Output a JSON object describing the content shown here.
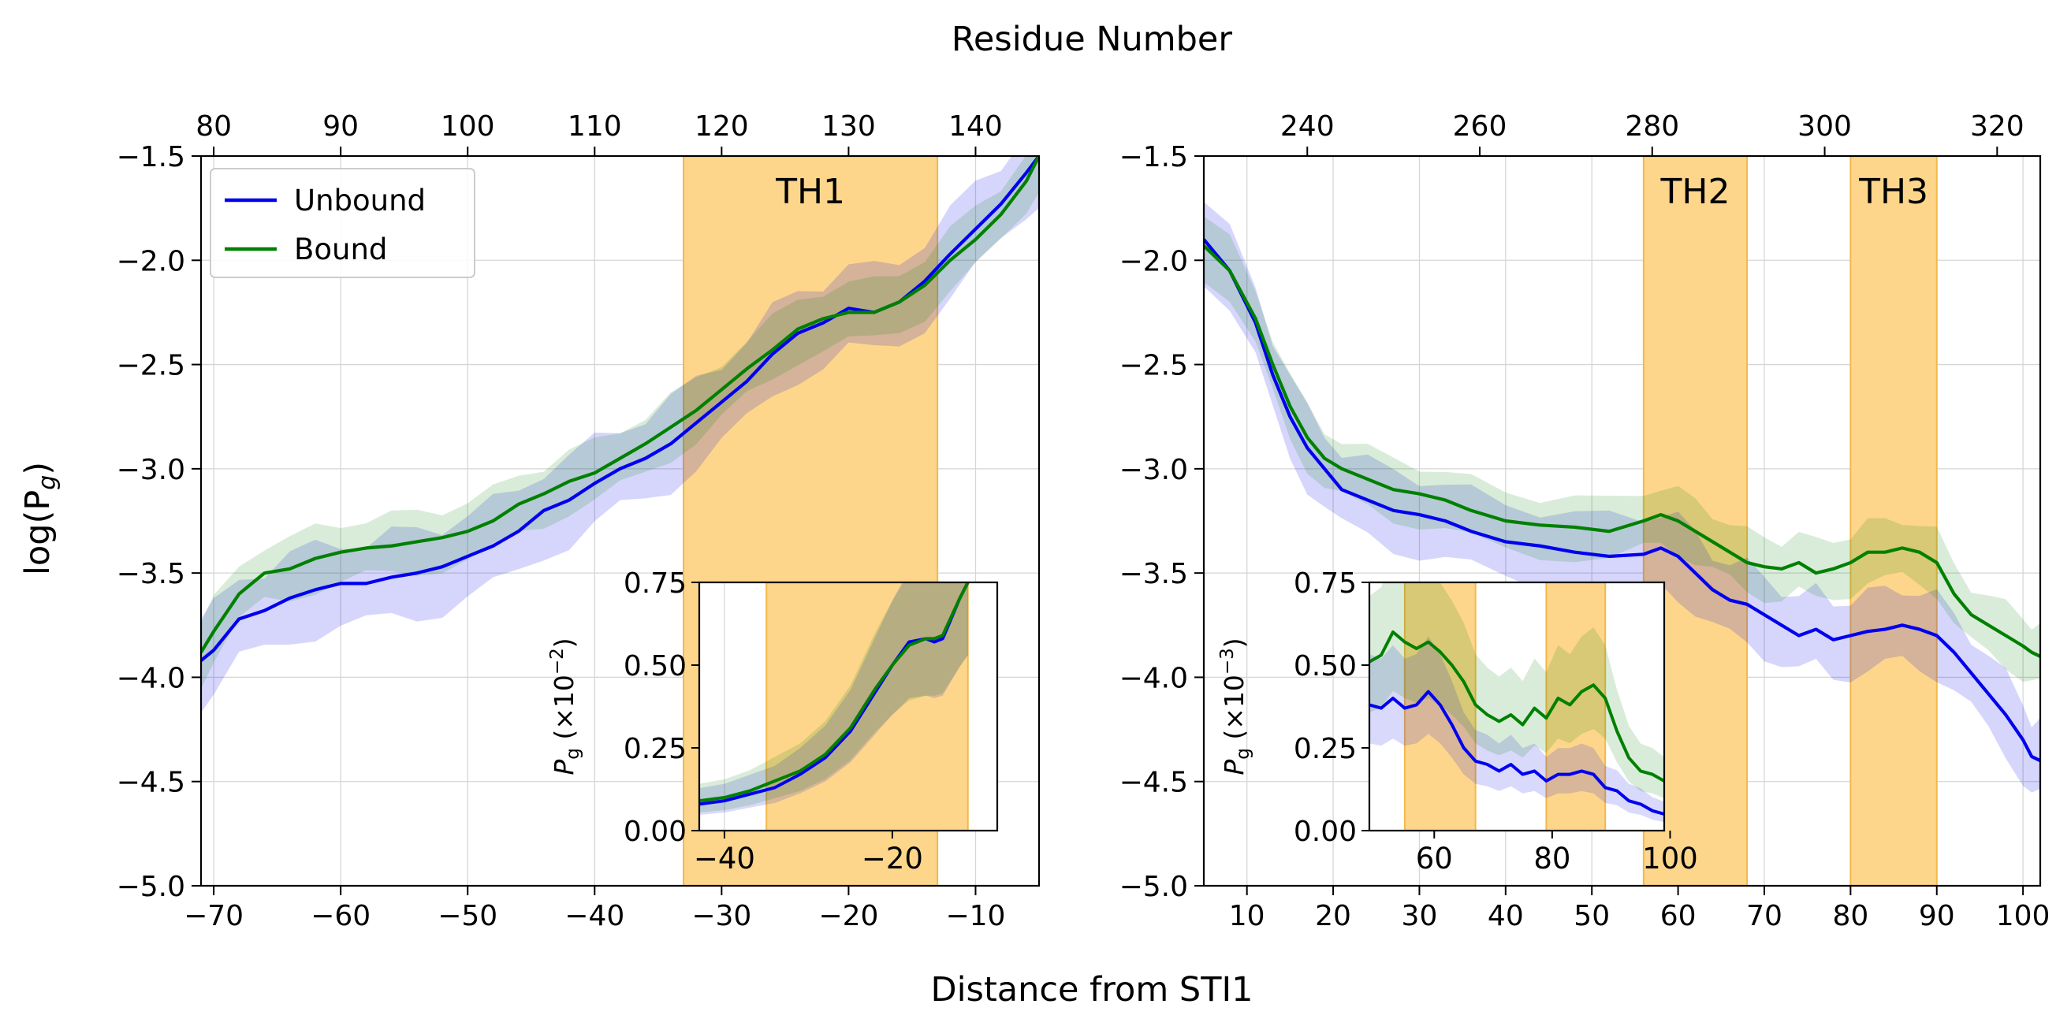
{
  "figure": {
    "top_label": "Residue Number",
    "bottom_label": "Distance from STI1",
    "ylabel_main": "log(P",
    "ylabel_sub": "g",
    "ylabel_close": ")"
  },
  "chart_data": [
    {
      "type": "line",
      "id": "left-main",
      "xlim": [
        -71,
        -5
      ],
      "ylim": [
        -5.0,
        -1.5
      ],
      "x_ticks": [
        -70,
        -60,
        -50,
        -40,
        -30,
        -20,
        -10
      ],
      "y_ticks": [
        -5.0,
        -4.5,
        -4.0,
        -3.5,
        -3.0,
        -2.5,
        -2.0,
        -1.5
      ],
      "y_tick_labels": [
        "−5.0",
        "−4.5",
        "−4.0",
        "−3.5",
        "−3.0",
        "−2.5",
        "−2.0",
        "−1.5"
      ],
      "x_tick_labels": [
        "−70",
        "−60",
        "−50",
        "−40",
        "−30",
        "−20",
        "−10"
      ],
      "top_axis": {
        "ticks": [
          80,
          90,
          100,
          110,
          120,
          130,
          140
        ],
        "offset": 150
      },
      "grid": true,
      "legend": {
        "placement": "top-left",
        "entries": [
          "Unbound",
          "Bound"
        ]
      },
      "regions": [
        {
          "label": "TH1",
          "x0": -33,
          "x1": -13
        }
      ],
      "series": [
        {
          "name": "Unbound",
          "color": "#0000ee",
          "band": 0.2,
          "x": [
            -71,
            -70,
            -68,
            -66,
            -64,
            -62,
            -60,
            -58,
            -56,
            -54,
            -52,
            -50,
            -48,
            -46,
            -44,
            -42,
            -40,
            -38,
            -36,
            -34,
            -32,
            -30,
            -28,
            -26,
            -24,
            -22,
            -20,
            -18,
            -16,
            -14,
            -12,
            -10,
            -8,
            -6,
            -5
          ],
          "y": [
            -3.92,
            -3.87,
            -3.72,
            -3.68,
            -3.62,
            -3.58,
            -3.55,
            -3.55,
            -3.52,
            -3.5,
            -3.47,
            -3.42,
            -3.37,
            -3.3,
            -3.2,
            -3.15,
            -3.07,
            -3.0,
            -2.95,
            -2.88,
            -2.78,
            -2.68,
            -2.58,
            -2.45,
            -2.35,
            -2.3,
            -2.23,
            -2.25,
            -2.2,
            -2.1,
            -1.97,
            -1.85,
            -1.73,
            -1.58,
            -1.5
          ]
        },
        {
          "name": "Bound",
          "color": "#008000",
          "band": 0.14,
          "x": [
            -71,
            -70,
            -68,
            -66,
            -64,
            -62,
            -60,
            -58,
            -56,
            -54,
            -52,
            -50,
            -48,
            -46,
            -44,
            -42,
            -40,
            -38,
            -36,
            -34,
            -32,
            -30,
            -28,
            -26,
            -24,
            -22,
            -20,
            -18,
            -16,
            -14,
            -12,
            -10,
            -8,
            -6,
            -5
          ],
          "y": [
            -3.88,
            -3.78,
            -3.6,
            -3.5,
            -3.48,
            -3.43,
            -3.4,
            -3.38,
            -3.37,
            -3.35,
            -3.33,
            -3.3,
            -3.25,
            -3.17,
            -3.12,
            -3.06,
            -3.02,
            -2.95,
            -2.88,
            -2.8,
            -2.72,
            -2.62,
            -2.52,
            -2.43,
            -2.33,
            -2.28,
            -2.25,
            -2.25,
            -2.2,
            -2.12,
            -2.0,
            -1.9,
            -1.78,
            -1.62,
            -1.5
          ]
        }
      ],
      "inset": {
        "xlim": [
          -43,
          -7.5
        ],
        "ylim": [
          0,
          0.75
        ],
        "x_ticks": [
          -40,
          -20
        ],
        "x_tick_labels": [
          "−40",
          "−20"
        ],
        "y_ticks": [
          0,
          0.25,
          0.5,
          0.75
        ],
        "y_tick_labels": [
          "0.00",
          "0.25",
          "0.50",
          "0.75"
        ],
        "ylabel": "P",
        "ylabel_sub": "g",
        "ylabel_rest": " (×10",
        "ylabel_exp": "−2",
        "ylabel_end": ")",
        "regions": [
          {
            "x0": -35,
            "x1": -11
          }
        ],
        "series": [
          {
            "name": "Unbound",
            "color": "#0000ee",
            "x": [
              -43,
              -40,
              -37,
              -34,
              -31,
              -28,
              -25,
              -22,
              -20,
              -18,
              -16,
              -15,
              -14,
              -12,
              -11
            ],
            "y": [
              0.08,
              0.09,
              0.11,
              0.13,
              0.17,
              0.22,
              0.3,
              0.42,
              0.5,
              0.57,
              0.58,
              0.57,
              0.58,
              0.7,
              0.75
            ]
          },
          {
            "name": "Bound",
            "color": "#008000",
            "x": [
              -43,
              -40,
              -37,
              -34,
              -31,
              -28,
              -25,
              -22,
              -20,
              -18,
              -16,
              -15,
              -14,
              -12,
              -11
            ],
            "y": [
              0.09,
              0.1,
              0.12,
              0.15,
              0.18,
              0.23,
              0.31,
              0.43,
              0.5,
              0.56,
              0.58,
              0.58,
              0.59,
              0.7,
              0.75
            ]
          }
        ]
      }
    },
    {
      "type": "line",
      "id": "right-main",
      "xlim": [
        5,
        102
      ],
      "ylim": [
        -5.0,
        -1.5
      ],
      "x_ticks": [
        10,
        20,
        30,
        40,
        50,
        60,
        70,
        80,
        90,
        100
      ],
      "x_tick_labels": [
        "10",
        "20",
        "30",
        "40",
        "50",
        "60",
        "70",
        "80",
        "90",
        "100"
      ],
      "y_ticks": [
        -5.0,
        -4.5,
        -4.0,
        -3.5,
        -3.0,
        -2.5,
        -2.0,
        -1.5
      ],
      "y_tick_labels": [
        "−5.0",
        "−4.5",
        "−4.0",
        "−3.5",
        "−3.0",
        "−2.5",
        "−2.0",
        "−1.5"
      ],
      "top_axis": {
        "ticks": [
          240,
          260,
          280,
          300,
          320
        ],
        "offset": 223
      },
      "grid": true,
      "regions": [
        {
          "label": "TH2",
          "x0": 56,
          "x1": 68
        },
        {
          "label": "TH3",
          "x0": 80,
          "x1": 90
        }
      ],
      "series": [
        {
          "name": "Unbound",
          "color": "#0000ee",
          "band": 0.18,
          "x": [
            5,
            8,
            11,
            13,
            15,
            17,
            19,
            21,
            24,
            27,
            30,
            33,
            36,
            40,
            44,
            48,
            52,
            56,
            58,
            60,
            62,
            64,
            66,
            68,
            70,
            72,
            74,
            76,
            78,
            80,
            82,
            84,
            86,
            88,
            90,
            92,
            94,
            96,
            98,
            100,
            101,
            102
          ],
          "y": [
            -1.9,
            -2.05,
            -2.3,
            -2.55,
            -2.75,
            -2.9,
            -3.0,
            -3.1,
            -3.15,
            -3.2,
            -3.22,
            -3.25,
            -3.3,
            -3.35,
            -3.37,
            -3.4,
            -3.42,
            -3.41,
            -3.38,
            -3.42,
            -3.5,
            -3.58,
            -3.63,
            -3.65,
            -3.7,
            -3.75,
            -3.8,
            -3.77,
            -3.82,
            -3.8,
            -3.78,
            -3.77,
            -3.75,
            -3.77,
            -3.8,
            -3.88,
            -3.98,
            -4.08,
            -4.18,
            -4.3,
            -4.38,
            -4.4
          ]
        },
        {
          "name": "Bound",
          "color": "#008000",
          "band": 0.14,
          "x": [
            5,
            8,
            11,
            13,
            15,
            17,
            19,
            21,
            24,
            27,
            30,
            33,
            36,
            40,
            44,
            48,
            52,
            56,
            58,
            60,
            62,
            64,
            66,
            68,
            70,
            72,
            74,
            76,
            78,
            80,
            82,
            84,
            86,
            88,
            90,
            92,
            94,
            96,
            98,
            100,
            101,
            102
          ],
          "y": [
            -1.93,
            -2.05,
            -2.28,
            -2.5,
            -2.7,
            -2.85,
            -2.95,
            -3.0,
            -3.05,
            -3.1,
            -3.12,
            -3.15,
            -3.2,
            -3.25,
            -3.27,
            -3.28,
            -3.3,
            -3.25,
            -3.22,
            -3.25,
            -3.3,
            -3.35,
            -3.4,
            -3.45,
            -3.47,
            -3.48,
            -3.45,
            -3.5,
            -3.48,
            -3.45,
            -3.4,
            -3.4,
            -3.38,
            -3.4,
            -3.45,
            -3.6,
            -3.7,
            -3.75,
            -3.8,
            -3.85,
            -3.88,
            -3.9
          ]
        }
      ],
      "inset": {
        "xlim": [
          49,
          99
        ],
        "ylim": [
          0,
          0.75
        ],
        "x_ticks": [
          60,
          80,
          100
        ],
        "x_tick_labels": [
          "60",
          "80",
          "100"
        ],
        "y_ticks": [
          0,
          0.25,
          0.5,
          0.75
        ],
        "y_tick_labels": [
          "0.00",
          "0.25",
          "0.50",
          "0.75"
        ],
        "ylabel": "P",
        "ylabel_sub": "g",
        "ylabel_rest": " (×10",
        "ylabel_exp": "−3",
        "ylabel_end": ")",
        "regions": [
          {
            "x0": 55,
            "x1": 67
          },
          {
            "x0": 79,
            "x1": 89
          }
        ],
        "series": [
          {
            "name": "Unbound",
            "color": "#0000ee",
            "x": [
              49,
              51,
              53,
              55,
              57,
              59,
              61,
              63,
              65,
              67,
              69,
              71,
              73,
              75,
              77,
              79,
              81,
              83,
              85,
              87,
              89,
              91,
              93,
              95,
              97,
              99
            ],
            "y": [
              0.38,
              0.37,
              0.4,
              0.37,
              0.38,
              0.42,
              0.38,
              0.32,
              0.25,
              0.21,
              0.2,
              0.18,
              0.2,
              0.17,
              0.18,
              0.15,
              0.17,
              0.17,
              0.18,
              0.17,
              0.13,
              0.12,
              0.09,
              0.08,
              0.06,
              0.05
            ]
          },
          {
            "name": "Bound",
            "color": "#008000",
            "x": [
              49,
              51,
              53,
              55,
              57,
              59,
              61,
              63,
              65,
              67,
              69,
              71,
              73,
              75,
              77,
              79,
              81,
              83,
              85,
              87,
              89,
              91,
              93,
              95,
              97,
              99
            ],
            "y": [
              0.51,
              0.53,
              0.6,
              0.57,
              0.55,
              0.57,
              0.54,
              0.5,
              0.45,
              0.38,
              0.35,
              0.33,
              0.35,
              0.32,
              0.37,
              0.34,
              0.4,
              0.38,
              0.42,
              0.44,
              0.4,
              0.3,
              0.22,
              0.18,
              0.17,
              0.15
            ]
          }
        ]
      }
    }
  ]
}
